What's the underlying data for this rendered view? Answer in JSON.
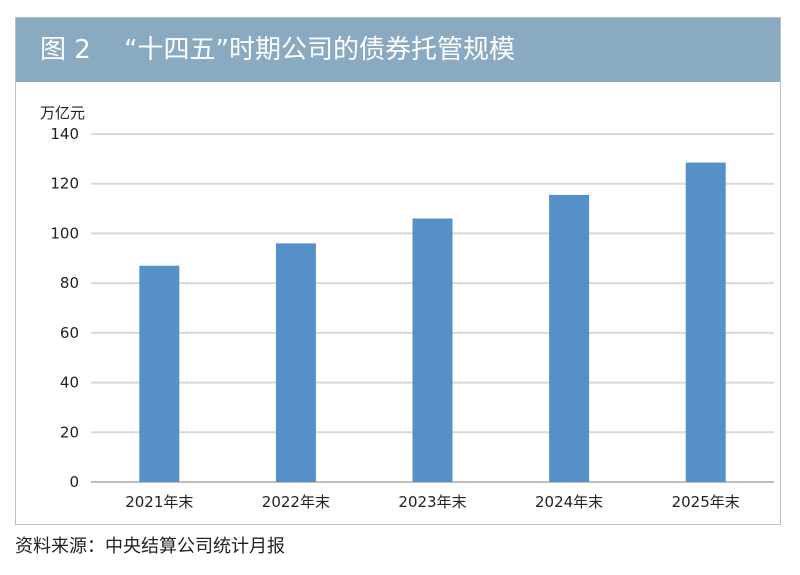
{
  "figure": {
    "label": "图 2",
    "title": "“十四五”时期公司的债券托管规模",
    "unit": "万亿元",
    "source": "资料来源：中央结算公司统计月报"
  },
  "colors": {
    "banner": "#89aac1",
    "bar": "#5591c8",
    "grid": "#d9d9d9"
  },
  "chart_data": {
    "type": "bar",
    "categories": [
      "2021年末",
      "2022年末",
      "2023年末",
      "2024年末",
      "2025年末"
    ],
    "values": [
      87,
      96,
      106,
      115.5,
      128.5
    ],
    "title": "“十四五”时期公司的债券托管规模",
    "xlabel": "",
    "ylabel": "万亿元",
    "ylim": [
      0,
      140
    ],
    "yticks": [
      0,
      20,
      40,
      60,
      80,
      100,
      120,
      140
    ],
    "grid": true,
    "legend": "none"
  }
}
